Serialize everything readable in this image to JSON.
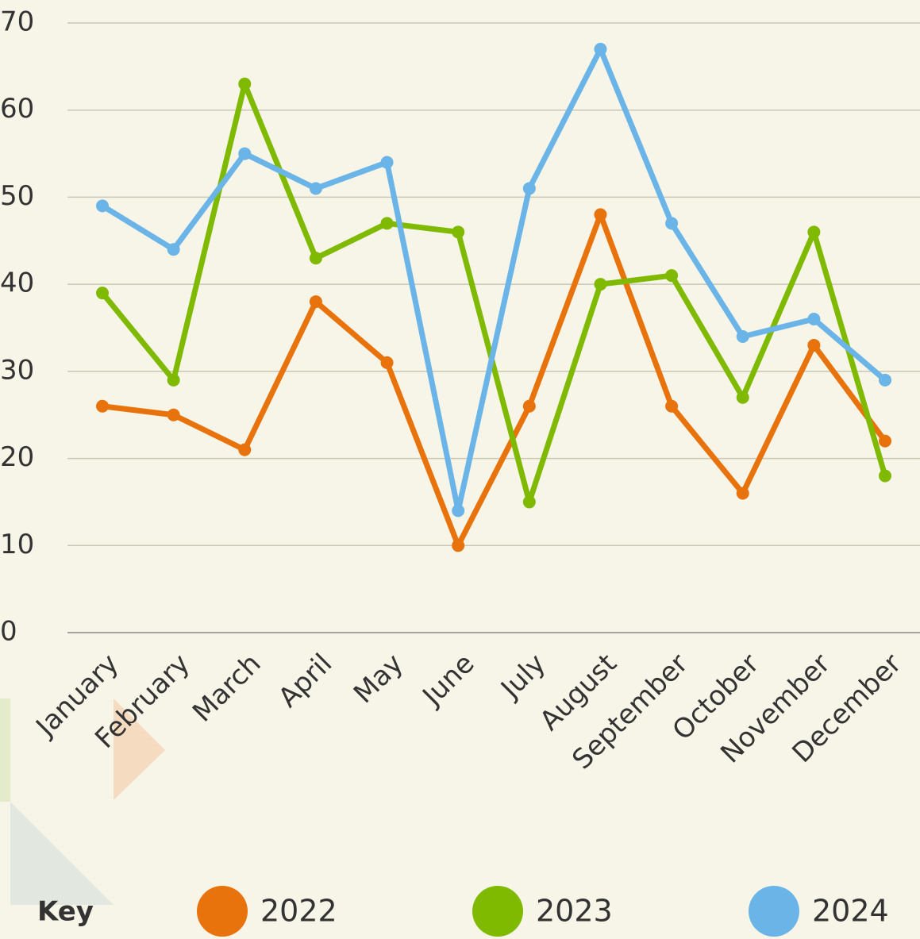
{
  "chart_data": {
    "type": "line",
    "categories": [
      "January",
      "February",
      "March",
      "April",
      "May",
      "June",
      "July",
      "August",
      "September",
      "October",
      "November",
      "December"
    ],
    "series": [
      {
        "name": "2022",
        "color": "#e8730c",
        "values": [
          26,
          25,
          21,
          38,
          31,
          10,
          26,
          48,
          26,
          16,
          33,
          22
        ]
      },
      {
        "name": "2023",
        "color": "#7fba00",
        "values": [
          39,
          29,
          63,
          43,
          47,
          46,
          15,
          40,
          41,
          27,
          46,
          18
        ]
      },
      {
        "name": "2024",
        "color": "#6ab4e8",
        "values": [
          49,
          44,
          55,
          51,
          54,
          14,
          51,
          67,
          47,
          34,
          36,
          29
        ]
      }
    ],
    "ylim": [
      0,
      70
    ],
    "yticks": [
      0,
      10,
      20,
      30,
      40,
      50,
      60,
      70
    ],
    "grid": true,
    "legend_title": "Key",
    "legend": "bottom"
  }
}
